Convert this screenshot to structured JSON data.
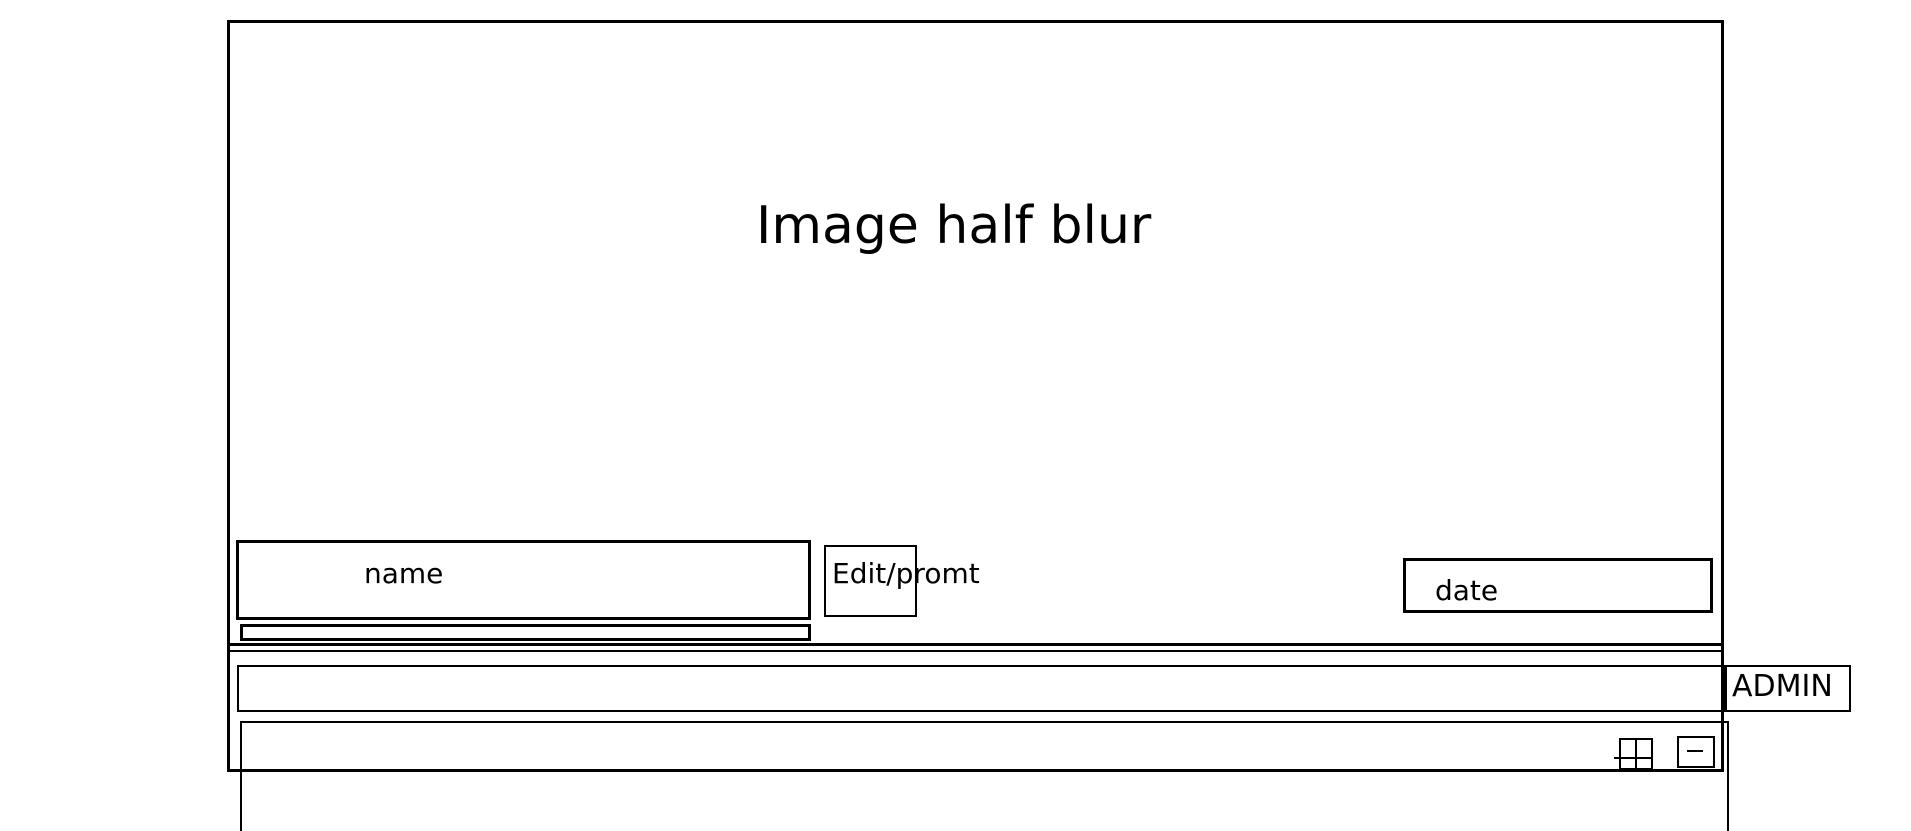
{
  "image": {
    "title": "Image half blur"
  },
  "fields": {
    "name": "name",
    "edit": "Edit/promt",
    "date": "date"
  },
  "header": {
    "admin": "ADMIN"
  },
  "icons": {
    "add": "plus-square-icon",
    "remove": "minus-square-icon"
  }
}
